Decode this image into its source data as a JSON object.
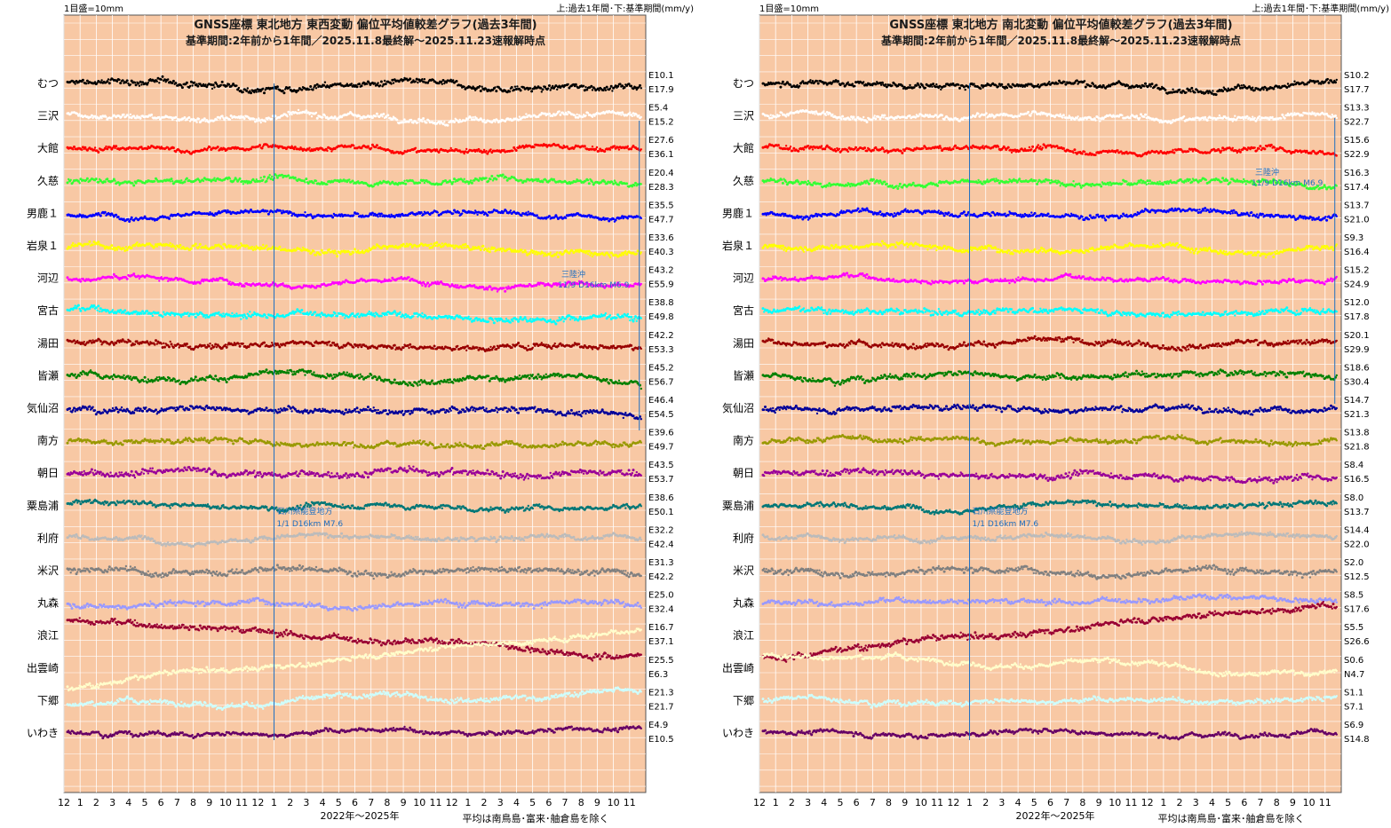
{
  "header": {
    "scale_label": "1目盛=10mm",
    "legend_label": "上:過去1年間･下:基準期間(mm/y)"
  },
  "chart_data": [
    {
      "type": "scatter",
      "panel": "left",
      "title": "GNSS座標 東北地方 東西変動 偏位平均値較差グラフ(過去3年間)",
      "subtitle": "基準期間:2年前から1年間／2025.11.8最終解～2025.11.23速報解時点",
      "xlabel": "2022年～2025年",
      "footnote": "平均は南鳥島･富来･舳倉島を除く",
      "x_ticks": [
        "12",
        "1",
        "2",
        "3",
        "4",
        "5",
        "6",
        "7",
        "8",
        "9",
        "10",
        "11",
        "12",
        "1",
        "2",
        "3",
        "4",
        "5",
        "6",
        "7",
        "8",
        "9",
        "10",
        "11",
        "12",
        "1",
        "2",
        "3",
        "4",
        "5",
        "6",
        "7",
        "8",
        "9",
        "10",
        "11"
      ],
      "y_unit_mm_per_division": 10,
      "events": [
        {
          "label": "石川県能登地方",
          "detail": "1/1 D16km M7.6"
        },
        {
          "label": "三陸沖",
          "detail": "11/9 D16km M6.9"
        }
      ],
      "stations": [
        {
          "name": "むつ",
          "color": "#000000",
          "top": "E10.1",
          "bottom": "E17.9",
          "level": 0,
          "trend": -0.4,
          "noise": 0.18
        },
        {
          "name": "三沢",
          "color": "#ffffff",
          "top": "E5.4",
          "bottom": "E15.2",
          "level": 0,
          "trend": -0.2,
          "noise": 0.14
        },
        {
          "name": "大館",
          "color": "#ff0000",
          "top": "E27.6",
          "bottom": "E36.1",
          "level": 0,
          "trend": -0.1,
          "noise": 0.12
        },
        {
          "name": "久慈",
          "color": "#33ff33",
          "top": "E20.4",
          "bottom": "E28.3",
          "level": 0,
          "trend": 0.0,
          "noise": 0.15
        },
        {
          "name": "男鹿１",
          "color": "#0000ff",
          "top": "E35.5",
          "bottom": "E47.7",
          "level": 0,
          "trend": -0.2,
          "noise": 0.12
        },
        {
          "name": "岩泉１",
          "color": "#ffff00",
          "top": "E33.6",
          "bottom": "E40.3",
          "level": 0,
          "trend": -0.5,
          "noise": 0.16
        },
        {
          "name": "河辺",
          "color": "#ff00ff",
          "top": "E43.2",
          "bottom": "E55.9",
          "level": 0,
          "trend": -0.7,
          "noise": 0.12
        },
        {
          "name": "宮古",
          "color": "#00ffff",
          "top": "E38.8",
          "bottom": "E49.8",
          "level": 0,
          "trend": -0.7,
          "noise": 0.17
        },
        {
          "name": "湯田",
          "color": "#990000",
          "top": "E42.2",
          "bottom": "E53.3",
          "level": 0,
          "trend": -0.3,
          "noise": 0.15
        },
        {
          "name": "皆瀬",
          "color": "#008000",
          "top": "E45.2",
          "bottom": "E56.7",
          "level": 0,
          "trend": -0.3,
          "noise": 0.15
        },
        {
          "name": "気仙沼",
          "color": "#000099",
          "top": "E46.4",
          "bottom": "E54.5",
          "level": 0,
          "trend": -0.4,
          "noise": 0.16
        },
        {
          "name": "南方",
          "color": "#999900",
          "top": "E39.6",
          "bottom": "E49.7",
          "level": 0,
          "trend": -0.4,
          "noise": 0.13
        },
        {
          "name": "朝日",
          "color": "#990099",
          "top": "E43.5",
          "bottom": "E53.7",
          "level": 0,
          "trend": 0.0,
          "noise": 0.2
        },
        {
          "name": "粟島浦",
          "color": "#007777",
          "top": "E38.6",
          "bottom": "E50.1",
          "level": 0,
          "trend": -0.2,
          "noise": 0.13
        },
        {
          "name": "利府",
          "color": "#bbbbbb",
          "top": "E32.2",
          "bottom": "E42.4",
          "level": 0,
          "trend": 0.0,
          "noise": 0.12
        },
        {
          "name": "米沢",
          "color": "#808080",
          "top": "E31.3",
          "bottom": "E42.2",
          "level": 0,
          "trend": -0.1,
          "noise": 0.18
        },
        {
          "name": "丸森",
          "color": "#9999ff",
          "top": "E25.0",
          "bottom": "E32.4",
          "level": 0,
          "trend": 0.0,
          "noise": 0.16
        },
        {
          "name": "浪江",
          "color": "#990033",
          "top": "E16.7",
          "bottom": "E37.1",
          "level": 1.0,
          "trend": -3.3,
          "noise": 0.18
        },
        {
          "name": "出雲崎",
          "color": "#ffffcc",
          "top": "E25.5",
          "bottom": "E6.3",
          "level": -1.1,
          "trend": 5.4,
          "noise": 0.13
        },
        {
          "name": "下郷",
          "color": "#ccffff",
          "top": "E21.3",
          "bottom": "E21.7",
          "level": -0.3,
          "trend": 1.2,
          "noise": 0.14
        },
        {
          "name": "いわき",
          "color": "#660066",
          "top": "E4.9",
          "bottom": "E10.5",
          "level": 0,
          "trend": 0.2,
          "noise": 0.1
        }
      ]
    },
    {
      "type": "scatter",
      "panel": "right",
      "title": "GNSS座標 東北地方 南北変動 偏位平均値較差グラフ(過去3年間)",
      "subtitle": "基準期間:2年前から1年間／2025.11.8最終解～2025.11.23速報解時点",
      "xlabel": "2022年～2025年",
      "footnote": "平均は南鳥島･富来･舳倉島を除く",
      "x_ticks": [
        "12",
        "1",
        "2",
        "3",
        "4",
        "5",
        "6",
        "7",
        "8",
        "9",
        "10",
        "11",
        "12",
        "1",
        "2",
        "3",
        "4",
        "5",
        "6",
        "7",
        "8",
        "9",
        "10",
        "11",
        "12",
        "1",
        "2",
        "3",
        "4",
        "5",
        "6",
        "7",
        "8",
        "9",
        "10",
        "11"
      ],
      "y_unit_mm_per_division": 10,
      "events": [
        {
          "label": "石川県能登地方",
          "detail": "1/1 D16km M7.6"
        },
        {
          "label": "三陸沖",
          "detail": "11/9 D16km M6.9"
        }
      ],
      "stations": [
        {
          "name": "むつ",
          "color": "#000000",
          "top": "S10.2",
          "bottom": "S17.7",
          "level": 0,
          "trend": -0.3,
          "noise": 0.15
        },
        {
          "name": "三沢",
          "color": "#ffffff",
          "top": "S13.3",
          "bottom": "S22.7",
          "level": 0,
          "trend": -0.2,
          "noise": 0.14
        },
        {
          "name": "大館",
          "color": "#ff0000",
          "top": "S15.6",
          "bottom": "S22.9",
          "level": 0,
          "trend": -0.3,
          "noise": 0.13
        },
        {
          "name": "久慈",
          "color": "#33ff33",
          "top": "S16.3",
          "bottom": "S17.4",
          "level": 0,
          "trend": -0.3,
          "noise": 0.15
        },
        {
          "name": "男鹿１",
          "color": "#0000ff",
          "top": "S13.7",
          "bottom": "S21.0",
          "level": 0,
          "trend": -0.1,
          "noise": 0.13
        },
        {
          "name": "岩泉１",
          "color": "#ffff00",
          "top": "S9.3",
          "bottom": "S16.4",
          "level": 0,
          "trend": -0.3,
          "noise": 0.16
        },
        {
          "name": "河辺",
          "color": "#ff00ff",
          "top": "S15.2",
          "bottom": "S24.9",
          "level": 0,
          "trend": -0.1,
          "noise": 0.11
        },
        {
          "name": "宮古",
          "color": "#00ffff",
          "top": "S12.0",
          "bottom": "S17.8",
          "level": 0,
          "trend": -0.1,
          "noise": 0.15
        },
        {
          "name": "湯田",
          "color": "#990000",
          "top": "S20.1",
          "bottom": "S29.9",
          "level": 0,
          "trend": 0.0,
          "noise": 0.14
        },
        {
          "name": "皆瀬",
          "color": "#008000",
          "top": "S18.6",
          "bottom": "S30.4",
          "level": 0,
          "trend": 0.1,
          "noise": 0.15
        },
        {
          "name": "気仙沼",
          "color": "#000099",
          "top": "S14.7",
          "bottom": "S21.3",
          "level": 0,
          "trend": 0.0,
          "noise": 0.15
        },
        {
          "name": "南方",
          "color": "#999900",
          "top": "S13.8",
          "bottom": "S21.8",
          "level": 0,
          "trend": 0.0,
          "noise": 0.13
        },
        {
          "name": "朝日",
          "color": "#990099",
          "top": "S8.4",
          "bottom": "S16.5",
          "level": 0,
          "trend": -0.5,
          "noise": 0.17
        },
        {
          "name": "粟島浦",
          "color": "#007777",
          "top": "S8.0",
          "bottom": "S13.7",
          "level": 0,
          "trend": 0.0,
          "noise": 0.13
        },
        {
          "name": "利府",
          "color": "#bbbbbb",
          "top": "S14.4",
          "bottom": "S22.0",
          "level": 0,
          "trend": 0.1,
          "noise": 0.12
        },
        {
          "name": "米沢",
          "color": "#808080",
          "top": "S2.0",
          "bottom": "S12.5",
          "level": 0,
          "trend": 0.0,
          "noise": 0.18
        },
        {
          "name": "丸森",
          "color": "#9999ff",
          "top": "S8.5",
          "bottom": "S17.6",
          "level": 0,
          "trend": 0.6,
          "noise": 0.14
        },
        {
          "name": "浪江",
          "color": "#990033",
          "top": "S5.5",
          "bottom": "S26.6",
          "level": -1.3,
          "trend": 5.1,
          "noise": 0.17
        },
        {
          "name": "出雲崎",
          "color": "#ffffcc",
          "top": "S0.6",
          "bottom": "N4.7",
          "level": 0.8,
          "trend": -1.6,
          "noise": 0.12
        },
        {
          "name": "下郷",
          "color": "#ccffff",
          "top": "S1.1",
          "bottom": "S7.1",
          "level": 0,
          "trend": 0.0,
          "noise": 0.12
        },
        {
          "name": "いわき",
          "color": "#660066",
          "top": "S6.9",
          "bottom": "S14.8",
          "level": 0,
          "trend": 0.0,
          "noise": 0.1
        }
      ]
    }
  ]
}
